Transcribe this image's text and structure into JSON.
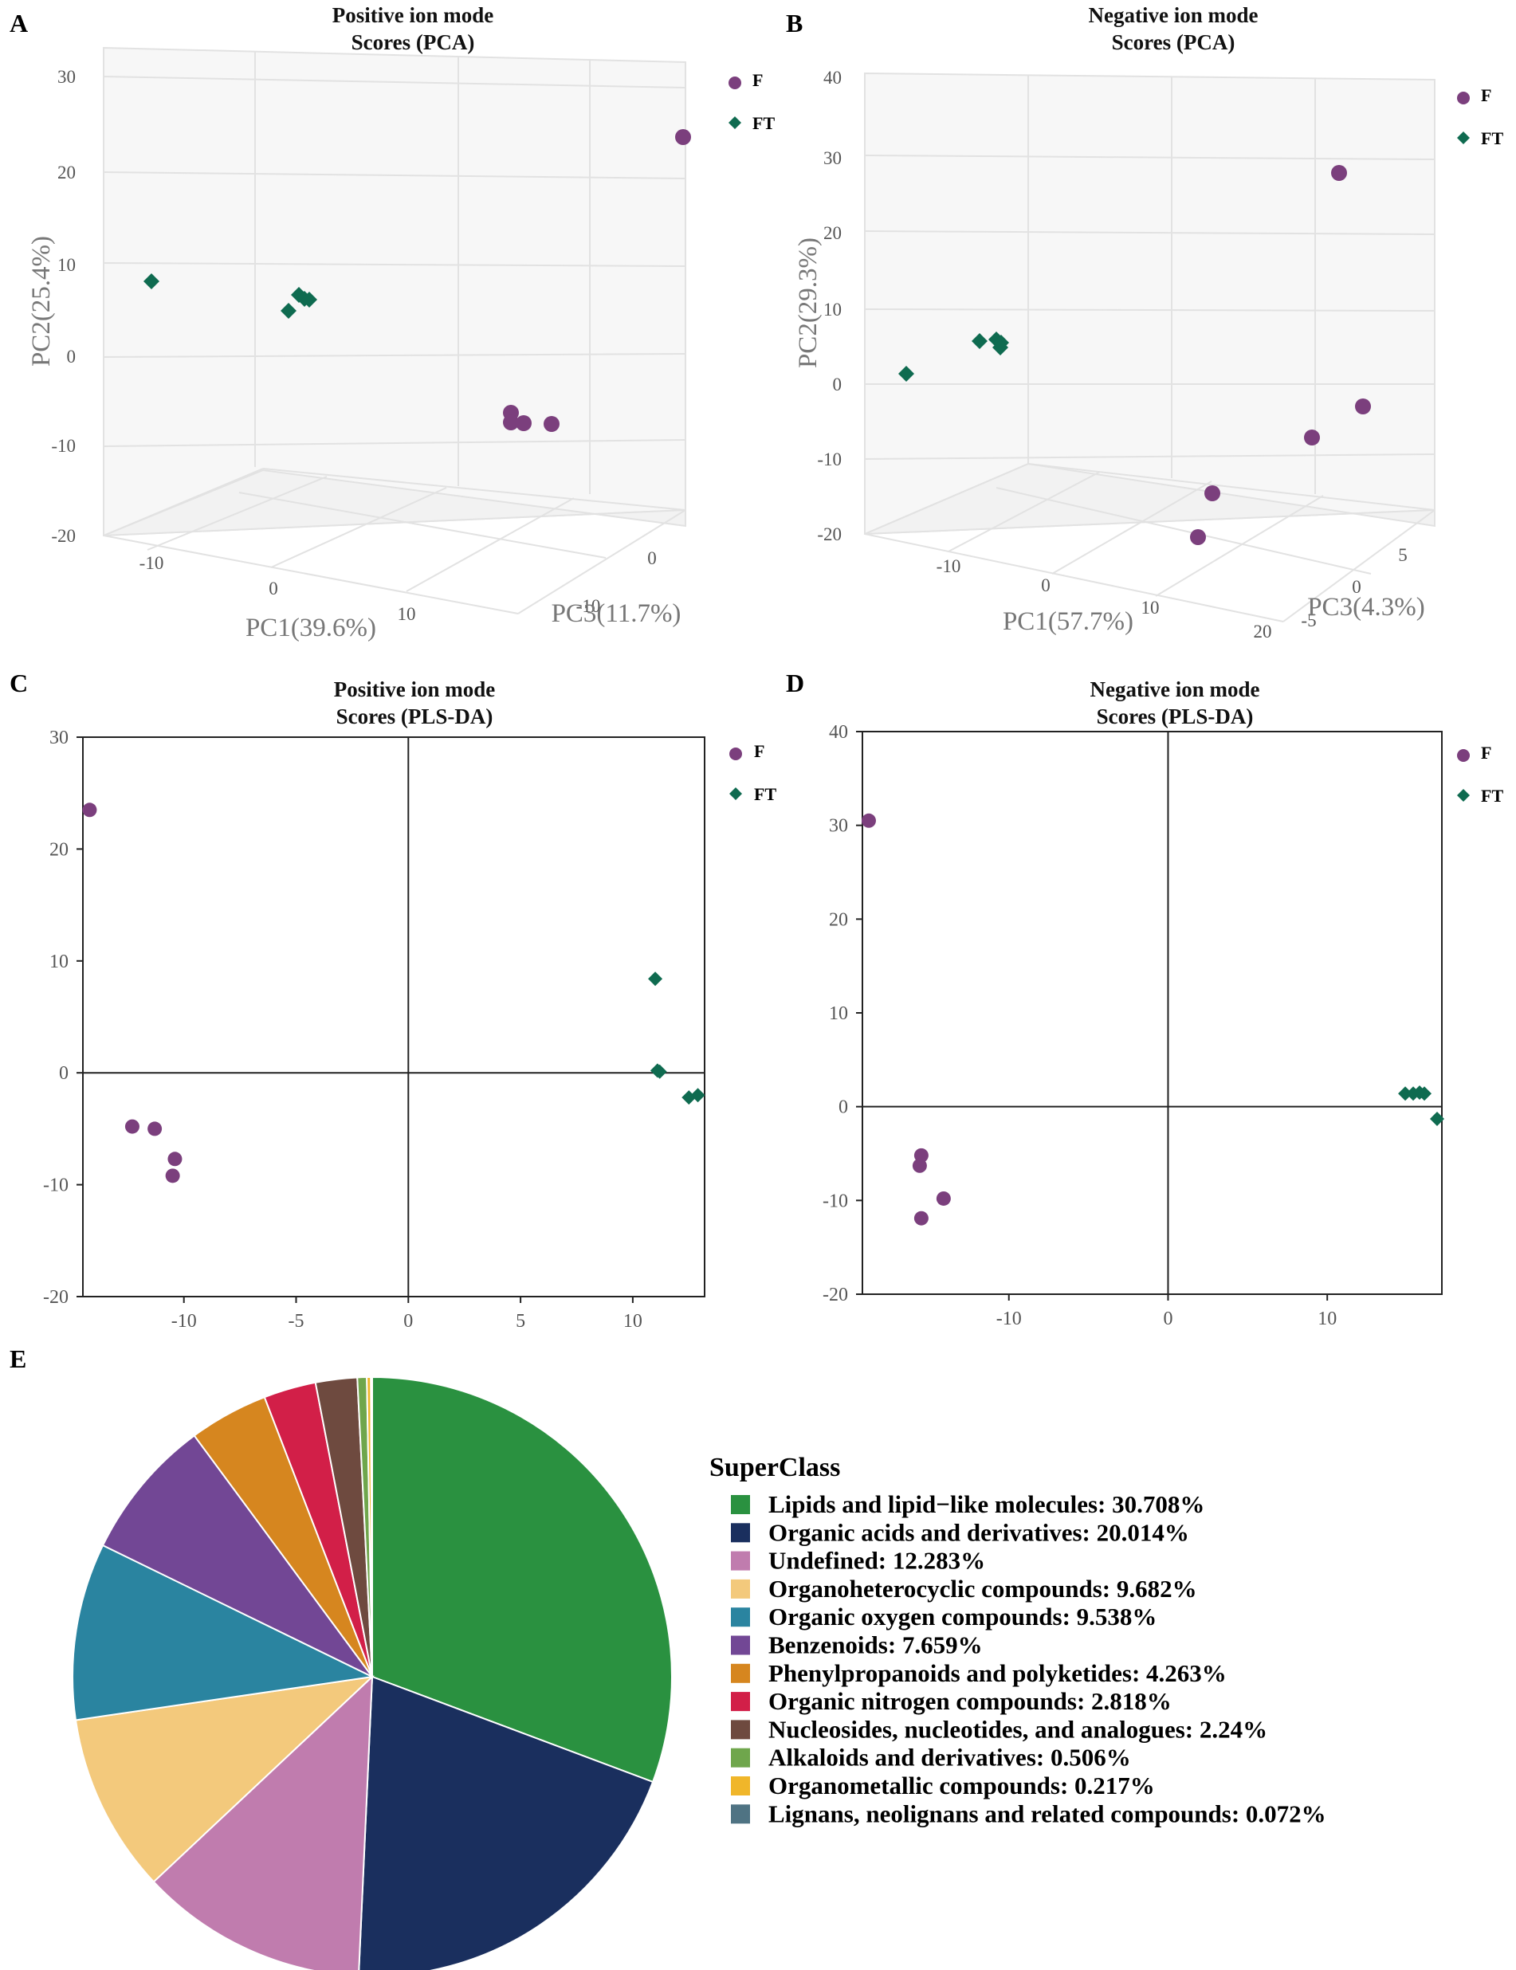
{
  "figure_labels": [
    "A",
    "B",
    "C",
    "D",
    "E"
  ],
  "colors": {
    "F": "#7b3f7d",
    "FT": "#0f6b50"
  },
  "chart_data": [
    {
      "id": "A",
      "type": "scatter",
      "title_line1": "Positive ion mode",
      "title_line2": "Scores (PCA)",
      "xlabel": "PC1(39.6%)",
      "ylabel": "PC2(25.4%)",
      "zlabel": "PC3(11.7%)",
      "y_ticks": [
        "30",
        "20",
        "10",
        "0",
        "-10",
        "-20"
      ],
      "x_ticks": [
        "-10",
        "0",
        "10"
      ],
      "z_ticks": [
        "0",
        "-10"
      ],
      "legend": [
        "F",
        "FT"
      ],
      "series": [
        {
          "name": "F",
          "marker": "circle",
          "points": [
            {
              "pc1": 24,
              "pc2": 23.5,
              "pc3": 2
            },
            {
              "pc1": 10,
              "pc2": -6,
              "pc3": 1
            },
            {
              "pc1": 10,
              "pc2": -7,
              "pc3": 0.5
            },
            {
              "pc1": 11,
              "pc2": -7.5,
              "pc3": 0
            },
            {
              "pc1": 13,
              "pc2": -7.8,
              "pc3": -1
            }
          ]
        },
        {
          "name": "FT",
          "marker": "diamond",
          "points": [
            {
              "pc1": -12,
              "pc2": 8,
              "pc3": 2
            },
            {
              "pc1": -3,
              "pc2": 5,
              "pc3": 1
            },
            {
              "pc1": -2,
              "pc2": 6.5,
              "pc3": 0.5
            },
            {
              "pc1": -1.5,
              "pc2": 6,
              "pc3": 0
            },
            {
              "pc1": -1,
              "pc2": 6,
              "pc3": -0.5
            }
          ]
        }
      ]
    },
    {
      "id": "B",
      "type": "scatter",
      "title_line1": "Negative ion mode",
      "title_line2": "Scores (PCA)",
      "xlabel": "PC1(57.7%)",
      "ylabel": "PC2(29.3%)",
      "zlabel": "PC3(4.3%)",
      "y_ticks": [
        "40",
        "30",
        "20",
        "10",
        "0",
        "-10",
        "-20"
      ],
      "x_ticks": [
        "-10",
        "0",
        "10",
        "20"
      ],
      "z_ticks": [
        "5",
        "0",
        "-5"
      ],
      "legend": [
        "F",
        "FT"
      ],
      "series": [
        {
          "name": "F",
          "marker": "circle",
          "points": [
            {
              "pc1": 18,
              "pc2": 27.5,
              "pc3": 2
            },
            {
              "pc1": 19,
              "pc2": -3.5,
              "pc3": 1
            },
            {
              "pc1": 16,
              "pc2": -7,
              "pc3": 0
            },
            {
              "pc1": 10,
              "pc2": -15,
              "pc3": -1
            },
            {
              "pc1": 9,
              "pc2": -20.5,
              "pc3": -2
            }
          ]
        },
        {
          "name": "FT",
          "marker": "diamond",
          "points": [
            {
              "pc1": -16,
              "pc2": 1.5,
              "pc3": 1
            },
            {
              "pc1": -8,
              "pc2": 5.5,
              "pc3": 0.5
            },
            {
              "pc1": -6,
              "pc2": 6,
              "pc3": 0
            },
            {
              "pc1": -5.5,
              "pc2": 5.5,
              "pc3": -0.5
            },
            {
              "pc1": -5.5,
              "pc2": 5,
              "pc3": -1
            }
          ]
        }
      ]
    },
    {
      "id": "C",
      "type": "scatter",
      "title_line1": "Positive ion mode",
      "title_line2": "Scores (PLS-DA)",
      "xlim": [
        -14.5,
        13.2
      ],
      "ylim": [
        -20,
        30
      ],
      "x_ticks": [
        -10,
        -5,
        0,
        5,
        10
      ],
      "y_ticks": [
        -20,
        -10,
        0,
        10,
        20,
        30
      ],
      "legend": [
        "F",
        "FT"
      ],
      "series": [
        {
          "name": "F",
          "marker": "circle",
          "points": [
            [
              -14.2,
              23.5
            ],
            [
              -12.3,
              -4.8
            ],
            [
              -11.3,
              -5.0
            ],
            [
              -10.4,
              -7.7
            ],
            [
              -10.5,
              -9.2
            ]
          ]
        },
        {
          "name": "FT",
          "marker": "diamond",
          "points": [
            [
              11.0,
              8.4
            ],
            [
              11.1,
              0.2
            ],
            [
              11.2,
              0.1
            ],
            [
              12.5,
              -2.2
            ],
            [
              12.9,
              -2.0
            ]
          ]
        }
      ]
    },
    {
      "id": "D",
      "type": "scatter",
      "title_line1": "Negative ion mode",
      "title_line2": "Scores (PLS-DA)",
      "xlim": [
        -19.2,
        17.2
      ],
      "ylim": [
        -20,
        40
      ],
      "x_ticks": [
        -10,
        0,
        10
      ],
      "y_ticks": [
        -20,
        -10,
        0,
        10,
        20,
        30,
        40
      ],
      "legend": [
        "F",
        "FT"
      ],
      "series": [
        {
          "name": "F",
          "marker": "circle",
          "points": [
            [
              -18.8,
              30.5
            ],
            [
              -15.5,
              -5.2
            ],
            [
              -15.6,
              -6.3
            ],
            [
              -14.1,
              -9.8
            ],
            [
              -15.5,
              -11.9
            ]
          ]
        },
        {
          "name": "FT",
          "marker": "diamond",
          "points": [
            [
              14.9,
              1.4
            ],
            [
              15.4,
              1.4
            ],
            [
              15.8,
              1.5
            ],
            [
              16.1,
              1.4
            ],
            [
              16.9,
              -1.3
            ]
          ]
        }
      ]
    },
    {
      "id": "E",
      "type": "pie",
      "legend_title": "SuperClass",
      "slices": [
        {
          "label": "Lipids and lipid−like molecules",
          "value": 30.708,
          "text": "Lipids and lipid−like molecules: 30.708%",
          "color": "#2a9140"
        },
        {
          "label": "Organic acids and derivatives",
          "value": 20.014,
          "text": "Organic acids and derivatives: 20.014%",
          "color": "#1a2f5e"
        },
        {
          "label": "Undefined",
          "value": 12.283,
          "text": "Undefined: 12.283%",
          "color": "#c07cae"
        },
        {
          "label": "Organoheterocyclic compounds",
          "value": 9.682,
          "text": "Organoheterocyclic compounds: 9.682%",
          "color": "#f3c97c"
        },
        {
          "label": "Organic oxygen compounds",
          "value": 9.538,
          "text": "Organic oxygen compounds: 9.538%",
          "color": "#2a84a0"
        },
        {
          "label": "Benzenoids",
          "value": 7.659,
          "text": "Benzenoids: 7.659%",
          "color": "#724795"
        },
        {
          "label": "Phenylpropanoids and polyketides",
          "value": 4.263,
          "text": "Phenylpropanoids and polyketides: 4.263%",
          "color": "#d6861f"
        },
        {
          "label": "Organic nitrogen compounds",
          "value": 2.818,
          "text": "Organic nitrogen compounds: 2.818%",
          "color": "#d21f48"
        },
        {
          "label": "Nucleosides, nucleotides, and analogues",
          "value": 2.24,
          "text": "Nucleosides, nucleotides, and analogues: 2.24%",
          "color": "#6e4a3f"
        },
        {
          "label": "Alkaloids and derivatives",
          "value": 0.506,
          "text": "Alkaloids and derivatives: 0.506%",
          "color": "#6fa64c"
        },
        {
          "label": "Organometallic compounds",
          "value": 0.217,
          "text": "Organometallic compounds: 0.217%",
          "color": "#f0b62a"
        },
        {
          "label": "Lignans, neolignans and related compounds",
          "value": 0.072,
          "text": "Lignans, neolignans and related compounds: 0.072%",
          "color": "#4f7383"
        }
      ]
    }
  ]
}
